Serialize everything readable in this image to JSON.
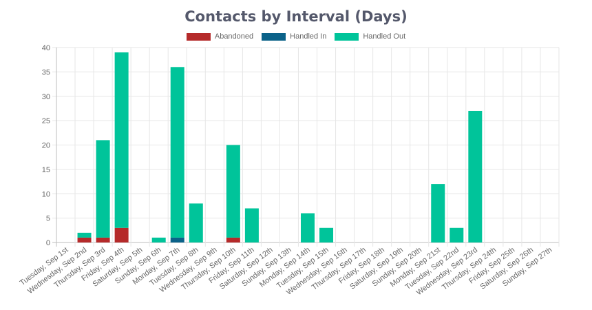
{
  "chart_data": {
    "type": "bar",
    "stacked": true,
    "title": "Contacts by Interval (Days)",
    "xlabel": "",
    "ylabel": "",
    "ylim": [
      0,
      40
    ],
    "yticks": [
      0,
      5,
      10,
      15,
      20,
      25,
      30,
      35,
      40
    ],
    "grid": true,
    "legend_position": "top",
    "categories": [
      "Tuesday, Sep 1st",
      "Wednesday, Sep 2nd",
      "Thursday, Sep 3rd",
      "Friday, Sep 4th",
      "Saturday, Sep 5th",
      "Sunday, Sep 6th",
      "Monday, Sep 7th",
      "Tuesday, Sep 8th",
      "Wednesday, Sep 9th",
      "Thursday, Sep 10th",
      "Friday, Sep 11th",
      "Saturday, Sep 12th",
      "Sunday, Sep 13th",
      "Monday, Sep 14th",
      "Tuesday, Sep 15th",
      "Wednesday, Sep 16th",
      "Thursday, Sep 17th",
      "Friday, Sep 18th",
      "Saturday, Sep 19th",
      "Sunday, Sep 20th",
      "Monday, Sep 21st",
      "Tuesday, Sep 22nd",
      "Wednesday, Sep 23rd",
      "Thursday, Sep 24th",
      "Friday, Sep 25th",
      "Saturday, Sep 26th",
      "Sunday, Sep 27th"
    ],
    "series": [
      {
        "name": "Abandoned",
        "color": "#b52a2a",
        "values": [
          0,
          1,
          1,
          3,
          0,
          0,
          0,
          0,
          0,
          1,
          0,
          0,
          0,
          0,
          0,
          0,
          0,
          0,
          0,
          0,
          0,
          0,
          0,
          0,
          0,
          0,
          0
        ]
      },
      {
        "name": "Handled In",
        "color": "#0b6289",
        "values": [
          0,
          0,
          0,
          0,
          0,
          0,
          1,
          0,
          0,
          0,
          0,
          0,
          0,
          0,
          0,
          0,
          0,
          0,
          0,
          0,
          0,
          0,
          0,
          0,
          0,
          0,
          0
        ]
      },
      {
        "name": "Handled Out",
        "color": "#00c49a",
        "values": [
          0,
          1,
          20,
          36,
          0,
          1,
          35,
          8,
          0,
          19,
          7,
          0,
          0,
          6,
          3,
          0,
          0,
          0,
          0,
          0,
          12,
          3,
          27,
          0,
          0,
          0,
          0
        ]
      }
    ]
  }
}
